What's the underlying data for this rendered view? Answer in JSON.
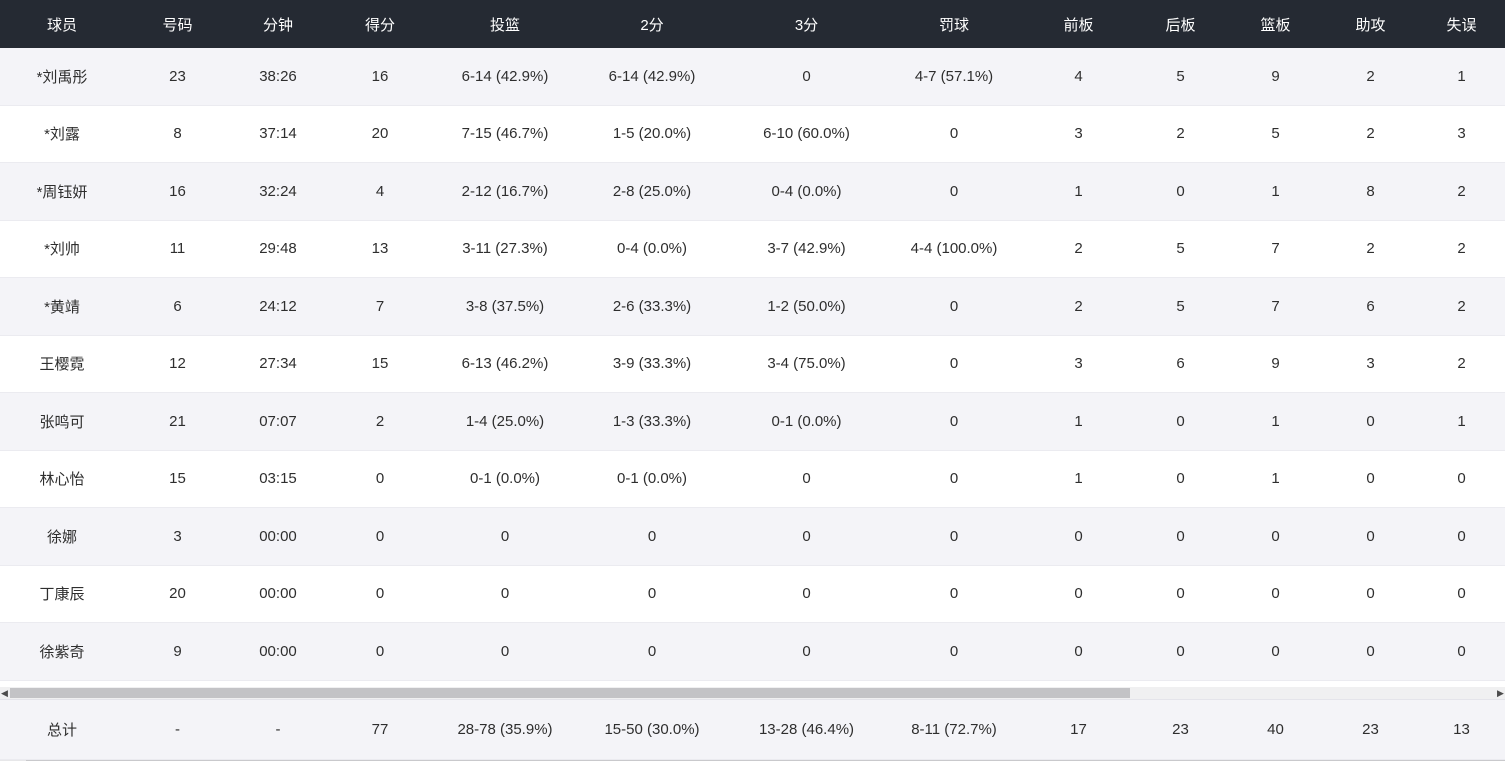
{
  "colors": {
    "header_bg": "#252a33",
    "header_text": "#ffffff",
    "row_alt_bg": "#f4f4f8",
    "row_bg": "#ffffff",
    "row_border": "#ebebf0",
    "totals_bg": "#f4f5fb",
    "body_text": "#2e2e2e",
    "scrollbar_track": "#f0f0f1",
    "scrollbar_thumb": "#c3c3c6"
  },
  "table": {
    "columns": [
      {
        "key": "player",
        "label": "球员"
      },
      {
        "key": "number",
        "label": "号码"
      },
      {
        "key": "minutes",
        "label": "分钟"
      },
      {
        "key": "points",
        "label": "得分"
      },
      {
        "key": "fg",
        "label": "投篮"
      },
      {
        "key": "two",
        "label": "2分"
      },
      {
        "key": "three",
        "label": "3分"
      },
      {
        "key": "ft",
        "label": "罚球"
      },
      {
        "key": "oreb",
        "label": "前板"
      },
      {
        "key": "dreb",
        "label": "后板"
      },
      {
        "key": "reb",
        "label": "篮板"
      },
      {
        "key": "ast",
        "label": "助攻"
      },
      {
        "key": "tov",
        "label": "失误"
      }
    ],
    "rows": [
      {
        "player": "*刘禹彤",
        "number": "23",
        "minutes": "38:26",
        "points": "16",
        "fg": "6-14 (42.9%)",
        "two": "6-14 (42.9%)",
        "three": "0",
        "ft": "4-7 (57.1%)",
        "oreb": "4",
        "dreb": "5",
        "reb": "9",
        "ast": "2",
        "tov": "1"
      },
      {
        "player": "*刘露",
        "number": "8",
        "minutes": "37:14",
        "points": "20",
        "fg": "7-15 (46.7%)",
        "two": "1-5 (20.0%)",
        "three": "6-10 (60.0%)",
        "ft": "0",
        "oreb": "3",
        "dreb": "2",
        "reb": "5",
        "ast": "2",
        "tov": "3"
      },
      {
        "player": "*周钰妍",
        "number": "16",
        "minutes": "32:24",
        "points": "4",
        "fg": "2-12 (16.7%)",
        "two": "2-8 (25.0%)",
        "three": "0-4 (0.0%)",
        "ft": "0",
        "oreb": "1",
        "dreb": "0",
        "reb": "1",
        "ast": "8",
        "tov": "2"
      },
      {
        "player": "*刘帅",
        "number": "11",
        "minutes": "29:48",
        "points": "13",
        "fg": "3-11 (27.3%)",
        "two": "0-4 (0.0%)",
        "three": "3-7 (42.9%)",
        "ft": "4-4 (100.0%)",
        "oreb": "2",
        "dreb": "5",
        "reb": "7",
        "ast": "2",
        "tov": "2"
      },
      {
        "player": "*黄靖",
        "number": "6",
        "minutes": "24:12",
        "points": "7",
        "fg": "3-8 (37.5%)",
        "two": "2-6 (33.3%)",
        "three": "1-2 (50.0%)",
        "ft": "0",
        "oreb": "2",
        "dreb": "5",
        "reb": "7",
        "ast": "6",
        "tov": "2"
      },
      {
        "player": "王樱霓",
        "number": "12",
        "minutes": "27:34",
        "points": "15",
        "fg": "6-13 (46.2%)",
        "two": "3-9 (33.3%)",
        "three": "3-4 (75.0%)",
        "ft": "0",
        "oreb": "3",
        "dreb": "6",
        "reb": "9",
        "ast": "3",
        "tov": "2"
      },
      {
        "player": "张鸣可",
        "number": "21",
        "minutes": "07:07",
        "points": "2",
        "fg": "1-4 (25.0%)",
        "two": "1-3 (33.3%)",
        "three": "0-1 (0.0%)",
        "ft": "0",
        "oreb": "1",
        "dreb": "0",
        "reb": "1",
        "ast": "0",
        "tov": "1"
      },
      {
        "player": "林心怡",
        "number": "15",
        "minutes": "03:15",
        "points": "0",
        "fg": "0-1 (0.0%)",
        "two": "0-1 (0.0%)",
        "three": "0",
        "ft": "0",
        "oreb": "1",
        "dreb": "0",
        "reb": "1",
        "ast": "0",
        "tov": "0"
      },
      {
        "player": "徐娜",
        "number": "3",
        "minutes": "00:00",
        "points": "0",
        "fg": "0",
        "two": "0",
        "three": "0",
        "ft": "0",
        "oreb": "0",
        "dreb": "0",
        "reb": "0",
        "ast": "0",
        "tov": "0"
      },
      {
        "player": "丁康辰",
        "number": "20",
        "minutes": "00:00",
        "points": "0",
        "fg": "0",
        "two": "0",
        "three": "0",
        "ft": "0",
        "oreb": "0",
        "dreb": "0",
        "reb": "0",
        "ast": "0",
        "tov": "0"
      },
      {
        "player": "徐紫奇",
        "number": "9",
        "minutes": "00:00",
        "points": "0",
        "fg": "0",
        "two": "0",
        "three": "0",
        "ft": "0",
        "oreb": "0",
        "dreb": "0",
        "reb": "0",
        "ast": "0",
        "tov": "0"
      }
    ],
    "totals": {
      "player": "总计",
      "number": "-",
      "minutes": "-",
      "points": "77",
      "fg": "28-78 (35.9%)",
      "two": "15-50 (30.0%)",
      "three": "13-28 (46.4%)",
      "ft": "8-11 (72.7%)",
      "oreb": "17",
      "dreb": "23",
      "reb": "40",
      "ast": "23",
      "tov": "13"
    }
  },
  "scrollbar": {
    "left_arrow": "◀",
    "right_arrow": "▶"
  }
}
